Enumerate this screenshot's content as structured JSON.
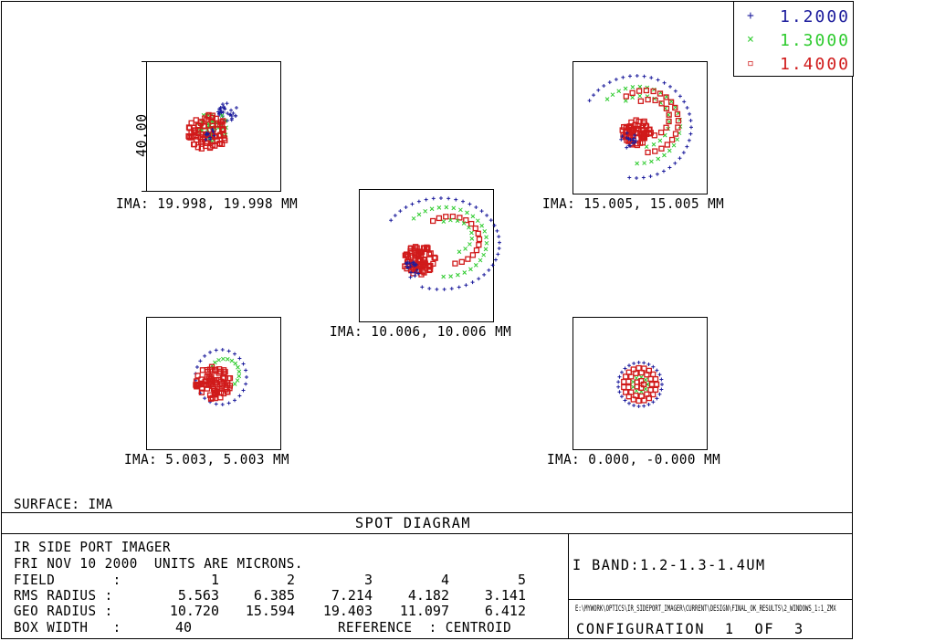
{
  "legend": {
    "items": [
      {
        "symbol": "+",
        "label": "1.2000",
        "color": "#1c1c9c"
      },
      {
        "symbol": "×",
        "label": "1.3000",
        "color": "#2ecb2e"
      },
      {
        "symbol": "▫",
        "label": "1.4000",
        "color": "#d01a1a"
      }
    ]
  },
  "plot": {
    "scale_label": "40.00",
    "spots": [
      {
        "field": "IMA: 19.998, 19.998 MM"
      },
      {
        "field": "IMA: 15.005, 15.005 MM"
      },
      {
        "field": "IMA: 10.006, 10.006 MM"
      },
      {
        "field": "IMA: 5.003, 5.003 MM"
      },
      {
        "field": "IMA: 0.000, -0.000 MM"
      }
    ],
    "surface": "SURFACE: IMA"
  },
  "title_bar": "SPOT DIAGRAM",
  "info": {
    "title": "IR SIDE PORT IMAGER",
    "date_units": "FRI NOV 10 2000  UNITS ARE MICRONS.",
    "field_label": "FIELD       :",
    "field_values": [
      "1",
      "2",
      "3",
      "4",
      "5"
    ],
    "rms_label": "RMS RADIUS :",
    "rms_values": [
      "5.563",
      "6.385",
      "7.214",
      "4.182",
      "3.141"
    ],
    "geo_label": "GEO RADIUS :",
    "geo_values": [
      "10.720",
      "15.594",
      "19.403",
      "11.097",
      "6.412"
    ],
    "box_label": "BOX WIDTH   :",
    "box_value": "40",
    "reference": "REFERENCE  : CENTROID"
  },
  "right_panel": {
    "band": "I BAND:1.2-1.3-1.4UM",
    "path": "E:\\MYWORK\\OPTICS\\IR_SIDEPORT_IMAGER\\CURRENT\\DESIGN\\FINAL_OK_RESULTS\\2_WINDOWS_1:1_ZMX",
    "configuration": "CONFIGURATION  1  OF  3"
  }
}
